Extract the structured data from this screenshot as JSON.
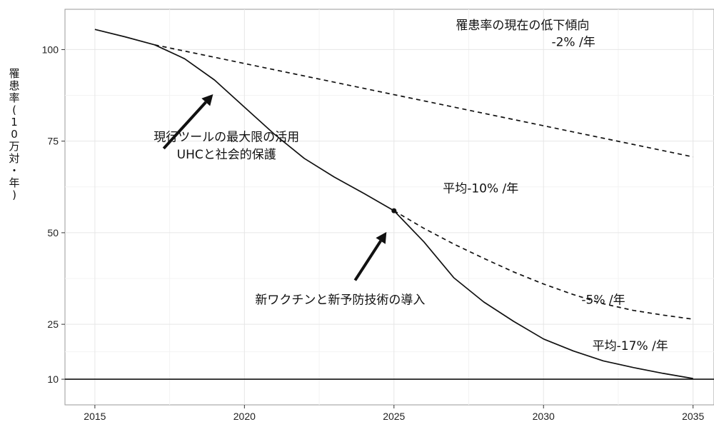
{
  "chart_data": {
    "type": "line",
    "xlim": [
      2014.0,
      2035.7
    ],
    "ylim": [
      3,
      111
    ],
    "x_ticks": [
      2015,
      2020,
      2025,
      2030,
      2035
    ],
    "y_ticks": [
      10,
      25,
      50,
      75,
      100
    ],
    "ylabel": "罹患率(10万対・年)",
    "grid": true,
    "series": [
      {
        "style": "solid",
        "points": [
          [
            2015,
            105.5
          ],
          [
            2016,
            103.5
          ],
          [
            2017,
            101.3
          ],
          [
            2018,
            97.5
          ],
          [
            2019,
            91.7
          ],
          [
            2020,
            84.3
          ],
          [
            2021,
            76.9
          ],
          [
            2022,
            70.3
          ],
          [
            2023,
            65.2
          ],
          [
            2024,
            60.7
          ],
          [
            2025,
            56.0
          ],
          [
            2026,
            47.5
          ],
          [
            2027,
            37.7
          ],
          [
            2028,
            31.1
          ],
          [
            2029,
            25.8
          ],
          [
            2030,
            21.0
          ],
          [
            2031,
            17.7
          ],
          [
            2032,
            15.0
          ],
          [
            2033,
            13.2
          ],
          [
            2034,
            11.6
          ],
          [
            2035,
            10.2
          ]
        ]
      },
      {
        "style": "dashed",
        "points": [
          [
            2017,
            101.3
          ],
          [
            2035,
            70.7
          ]
        ]
      },
      {
        "style": "dashed",
        "points": [
          [
            2025,
            56.0
          ],
          [
            2026,
            51.2
          ],
          [
            2027,
            46.9
          ],
          [
            2028,
            43.0
          ],
          [
            2029,
            39.3
          ],
          [
            2030,
            36.0
          ],
          [
            2031,
            33.1
          ],
          [
            2032,
            30.6
          ],
          [
            2033,
            28.8
          ],
          [
            2034,
            27.5
          ],
          [
            2035,
            26.4
          ]
        ]
      }
    ],
    "hlines": [
      {
        "y": 10,
        "style": "solid"
      }
    ],
    "markers": [
      {
        "x": 2025,
        "y": 56.0
      }
    ],
    "annotations": [
      {
        "text": "罹患率の現在の低下傾向",
        "x": 2029.3,
        "y": 105.5
      },
      {
        "text": "-2% /年",
        "x": 2031.0,
        "y": 101.0
      },
      {
        "text": "現行ツールの最大限の活用",
        "x": 2019.4,
        "y": 75.0
      },
      {
        "text": "UHCと社会的保護",
        "x": 2019.4,
        "y": 70.3
      },
      {
        "text": "平均-10% /年",
        "x": 2027.9,
        "y": 61.0
      },
      {
        "text": "新ワクチンと新予防技術の導入",
        "x": 2023.2,
        "y": 30.6
      },
      {
        "text": "-5% /年",
        "x": 2032.0,
        "y": 30.6
      },
      {
        "text": "平均-17% /年",
        "x": 2032.9,
        "y": 18.0
      }
    ],
    "arrows": [
      {
        "from": [
          2017.3,
          73.0
        ],
        "to": [
          2018.95,
          87.8
        ]
      },
      {
        "from": [
          2023.7,
          37.0
        ],
        "to": [
          2024.75,
          50.2
        ]
      }
    ]
  }
}
